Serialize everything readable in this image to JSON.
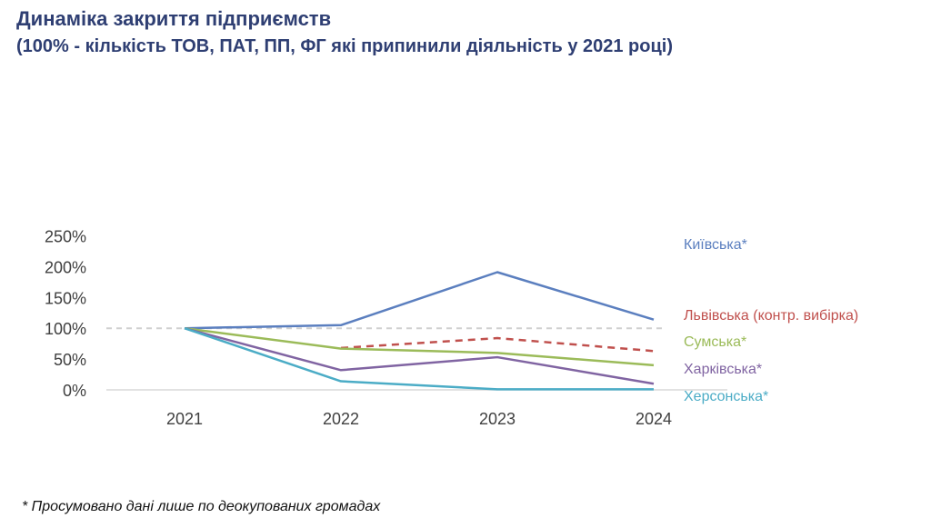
{
  "header": {
    "title": "Динаміка закриття підприємств",
    "subtitle": "(100% - кількість ТОВ, ПАТ, ПП, ФГ які припинили діяльність у 2021 році)"
  },
  "footnote": "* Просумовано дані лише по деокупованих громадах",
  "chart_data": {
    "type": "line",
    "categories": [
      "2021",
      "2022",
      "2023",
      "2024"
    ],
    "y_ticks": [
      "0%",
      "50%",
      "100%",
      "150%",
      "200%",
      "250%"
    ],
    "ylim": [
      0,
      250
    ],
    "grid": false,
    "legend": "right end labels",
    "reference_line": {
      "value": 100,
      "style": "dashed",
      "color": "#d0d0d0"
    },
    "series": [
      {
        "name": "Київська*",
        "values": [
          100,
          105,
          191,
          114
        ],
        "color": "#5b7fbf",
        "dashed": false
      },
      {
        "name": "Львівська (контр. вибірка)",
        "values": [
          null,
          68,
          84,
          63
        ],
        "color": "#c0504d",
        "dashed": true
      },
      {
        "name": "Сумська*",
        "values": [
          100,
          67,
          60,
          40
        ],
        "color": "#9bbb59",
        "dashed": false
      },
      {
        "name": "Харківська*",
        "values": [
          100,
          32,
          53,
          10
        ],
        "color": "#8064a2",
        "dashed": false
      },
      {
        "name": "Херсонська*",
        "values": [
          100,
          14,
          1,
          1
        ],
        "color": "#4bacc6",
        "dashed": false
      }
    ]
  }
}
